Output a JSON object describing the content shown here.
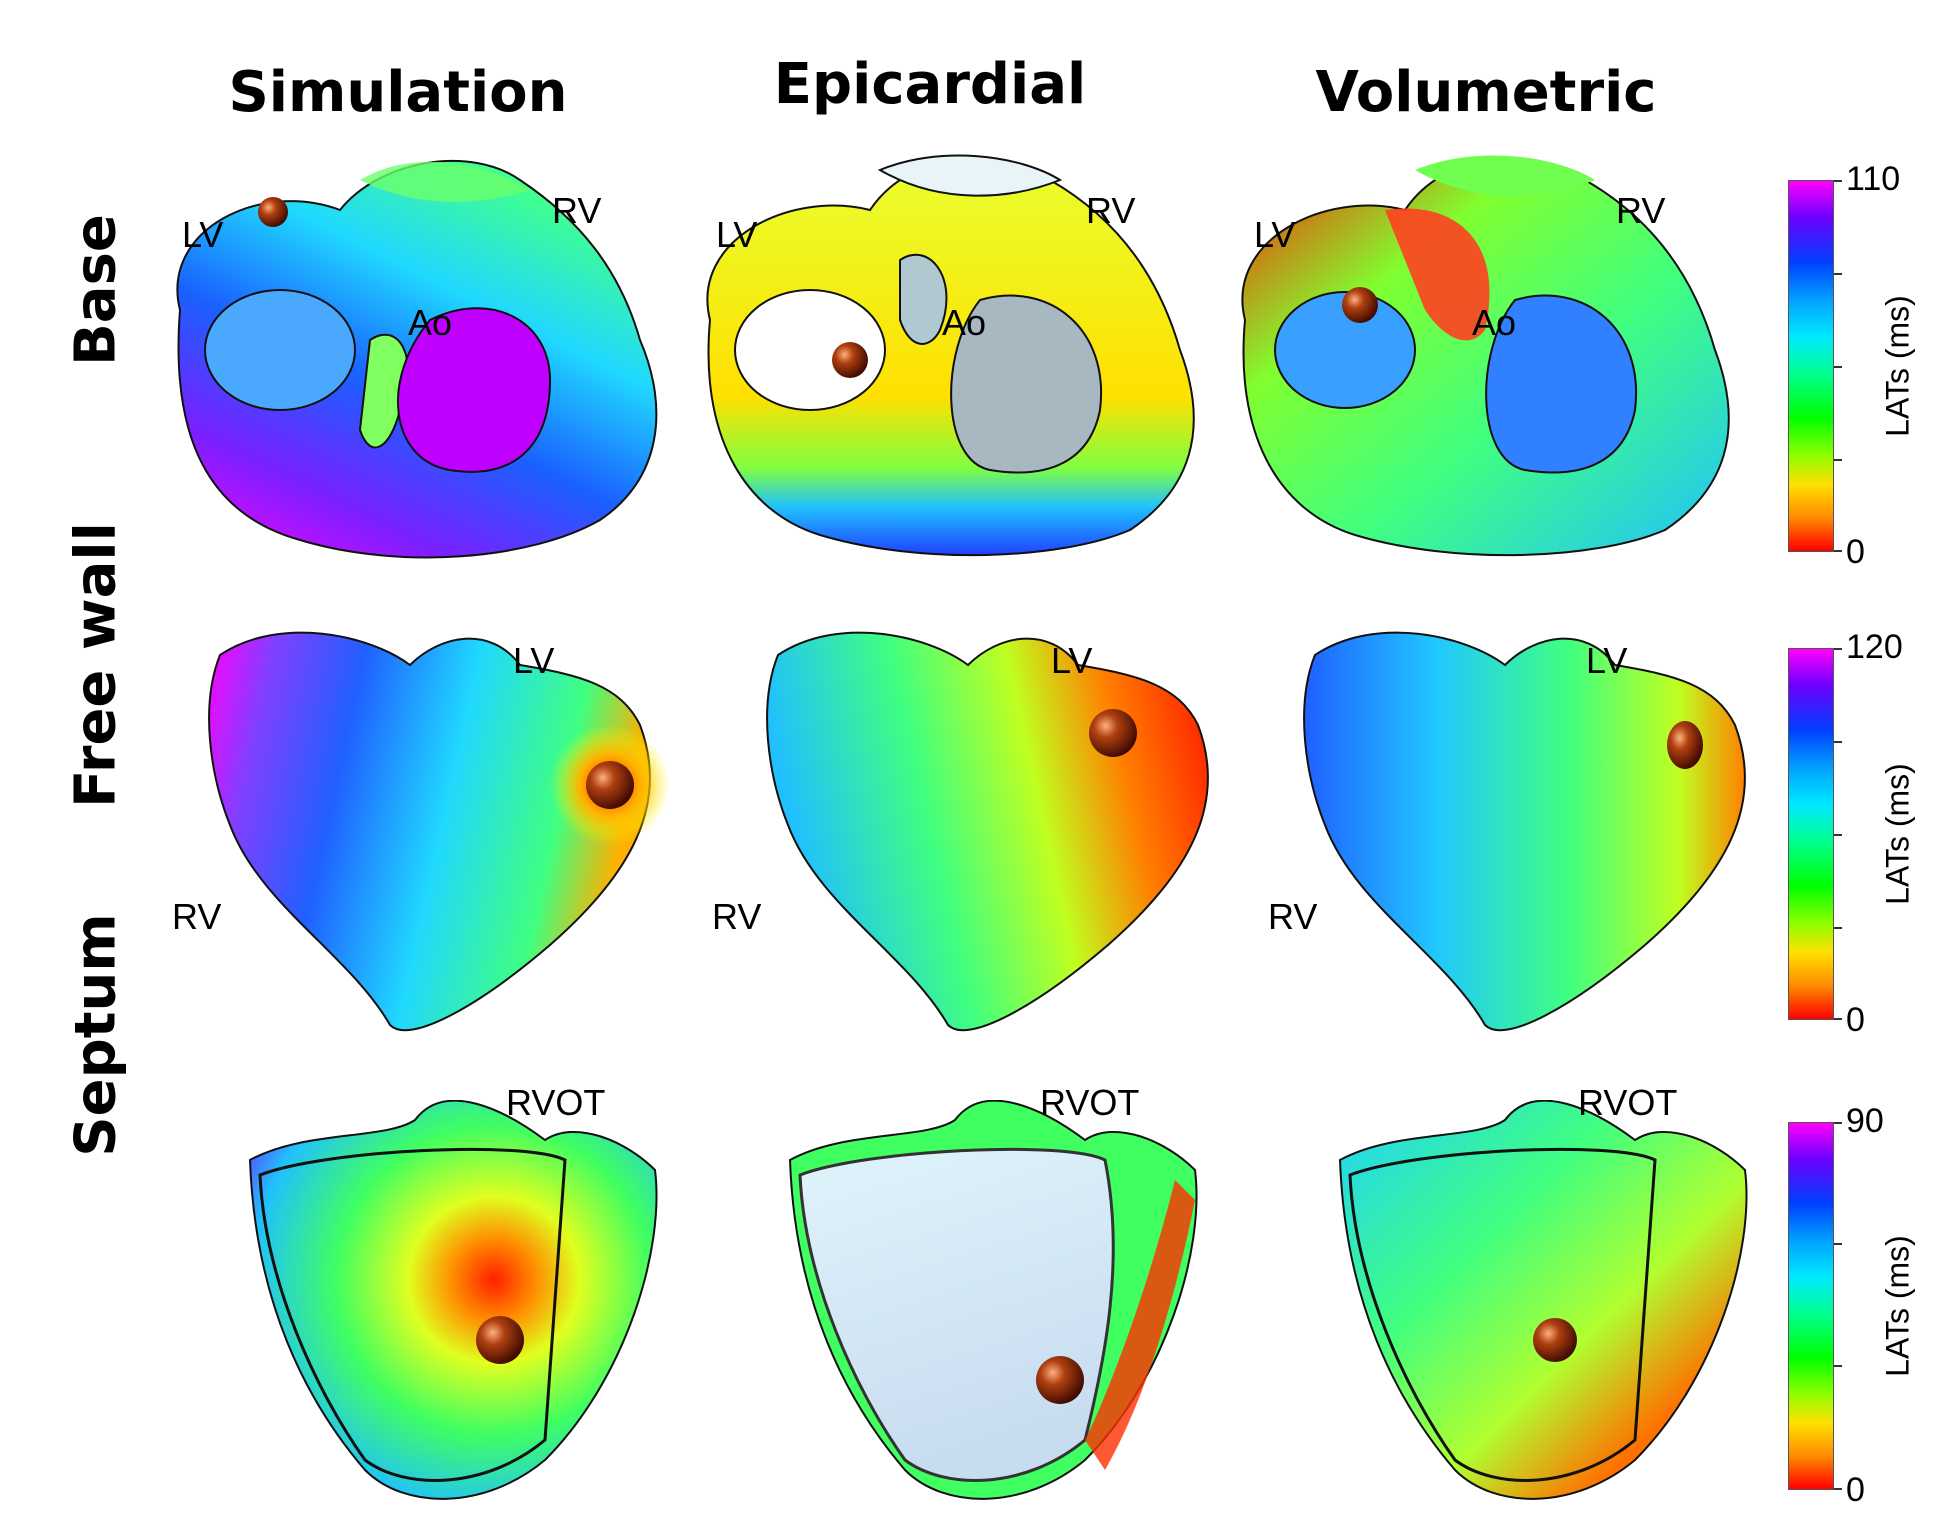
{
  "columns": [
    "Simulation",
    "Epicardial",
    "Volumetric"
  ],
  "rows": [
    "Base",
    "Free wall",
    "Septum"
  ],
  "labels": {
    "lv": "LV",
    "rv": "RV",
    "ao": "Ao",
    "rvot": "RVOT"
  },
  "colorbars": [
    {
      "max": "110",
      "min": "0",
      "label": "LATs (ms)"
    },
    {
      "max": "120",
      "min": "0",
      "label": "LATs (ms)"
    },
    {
      "max": "90",
      "min": "0",
      "label": "LATs (ms)"
    }
  ],
  "colormap": [
    "#ff0000",
    "#ff8a00",
    "#ffe000",
    "#00ff00",
    "#00e8ff",
    "#0040ff",
    "#ff00ff"
  ]
}
